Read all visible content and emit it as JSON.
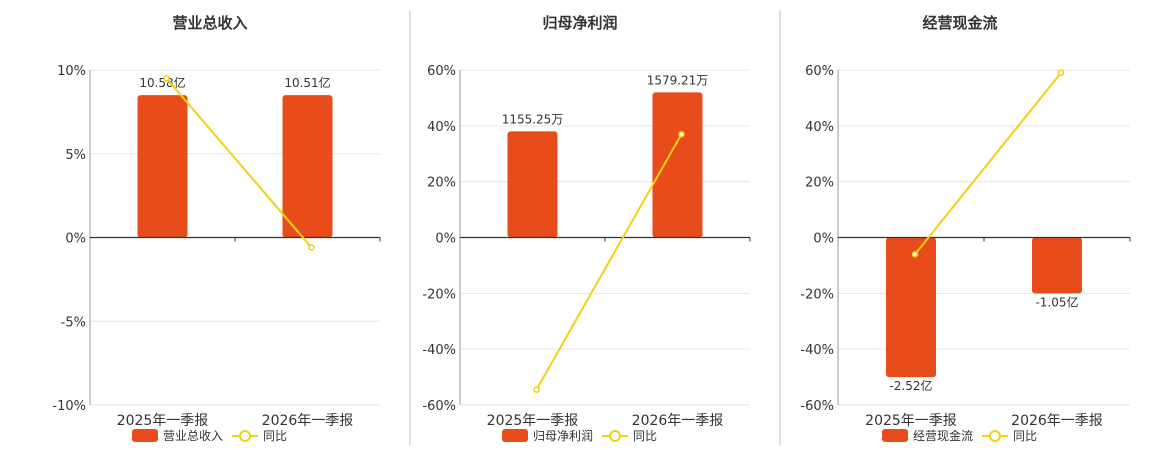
{
  "colors": {
    "bar": "#e84c1b",
    "line": "#f2d114",
    "grid": "#e6e6e6",
    "axis": "#333333",
    "divider": "#bfbfbf"
  },
  "chart_data": [
    {
      "type": "bar",
      "title": "营业总收入",
      "categories": [
        "2025年一季报",
        "2026年一季报"
      ],
      "series": [
        {
          "name": "营业总收入",
          "type": "bar",
          "values_pct_axis": [
            8.5,
            8.5
          ],
          "labels": [
            "10.58亿",
            "10.51亿"
          ]
        },
        {
          "name": "同比",
          "type": "line",
          "values": [
            9.5,
            -0.6
          ]
        }
      ],
      "ylim": [
        -10,
        10
      ],
      "yticks": [
        10,
        5,
        0,
        -5,
        -10
      ],
      "ytick_labels": [
        "10%",
        "5%",
        "0%",
        "-5%",
        "-10%"
      ],
      "grid": true,
      "legend": "bottom-center"
    },
    {
      "type": "bar",
      "title": "归母净利润",
      "categories": [
        "2025年一季报",
        "2026年一季报"
      ],
      "series": [
        {
          "name": "归母净利润",
          "type": "bar",
          "values_pct_axis": [
            38,
            52
          ],
          "labels": [
            "1155.25万",
            "1579.21万"
          ]
        },
        {
          "name": "同比",
          "type": "line",
          "values": [
            -54.5,
            37
          ]
        }
      ],
      "ylim": [
        -60,
        60
      ],
      "yticks": [
        60,
        40,
        20,
        0,
        -20,
        -40,
        -60
      ],
      "ytick_labels": [
        "60%",
        "40%",
        "20%",
        "0%",
        "-20%",
        "-40%",
        "-60%"
      ],
      "grid": true,
      "legend": "bottom-center"
    },
    {
      "type": "bar",
      "title": "经营现金流",
      "categories": [
        "2025年一季报",
        "2026年一季报"
      ],
      "series": [
        {
          "name": "经营现金流",
          "type": "bar",
          "values_pct_axis": [
            -50,
            -20
          ],
          "labels": [
            "-2.52亿",
            "-1.05亿"
          ]
        },
        {
          "name": "同比",
          "type": "line",
          "values": [
            -6,
            59
          ]
        }
      ],
      "ylim": [
        -60,
        60
      ],
      "yticks": [
        60,
        40,
        20,
        0,
        -20,
        -40,
        -60
      ],
      "ytick_labels": [
        "60%",
        "40%",
        "20%",
        "0%",
        "-20%",
        "-40%",
        "-60%"
      ],
      "grid": true,
      "legend": "bottom-center"
    }
  ]
}
